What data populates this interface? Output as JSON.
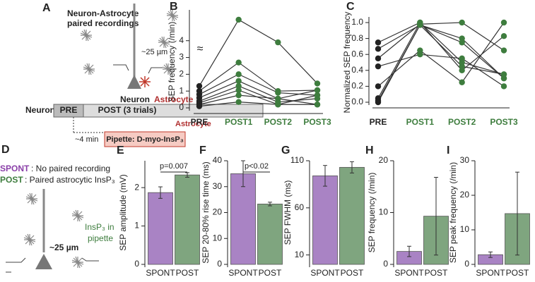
{
  "panel_a": {
    "label": "A",
    "title_line1": "Neuron-Astrocyte",
    "title_line2": "paired recordings",
    "distance": "~25 µm",
    "neuron": "Neuron",
    "astrocyte": "Astrocyte",
    "timeline_neuron": "Neuron",
    "pre": "PRE",
    "post": "POST (3 trials)",
    "timeline_astrocyte": "Astrocyte",
    "delay": "~4 min",
    "pipette": "Pipette: D-myo-InsP₃"
  },
  "panel_d": {
    "label": "D",
    "spont_key": "SPONT",
    "spont_text": ": No paired recording",
    "post_key": "POST",
    "post_text": ": Paired astrocytic InsP₃",
    "distance": "~25 µm",
    "pipette_line1": "InsP₃ in",
    "pipette_line2": "pipette"
  },
  "chart_data": [
    {
      "type": "line",
      "panel": "B",
      "ylabel": "SEP frequency (/min)",
      "axis_break": "≈",
      "categories": [
        "PRE",
        "POST1",
        "POST2",
        "POST3"
      ],
      "point_colors": [
        "#222222",
        "#3e7d3e",
        "#3e7d3e",
        "#3e7d3e"
      ],
      "line_color": "#333333",
      "series": [
        {
          "values": [
            1.3,
            5.25,
            3.9,
            1.45
          ]
        },
        {
          "values": [
            1.0,
            2.7,
            1.0,
            1.05
          ]
        },
        {
          "values": [
            0.8,
            2.0,
            0.9,
            0.75
          ]
        },
        {
          "values": [
            0.6,
            1.6,
            0.55,
            1.05
          ]
        },
        {
          "values": [
            0.4,
            1.3,
            0.35,
            0.55
          ]
        },
        {
          "values": [
            0.3,
            1.05,
            0.2,
            0.75
          ]
        },
        {
          "values": [
            0.2,
            0.75,
            0.55,
            0.2
          ]
        },
        {
          "values": [
            0.1,
            0.35,
            0.2,
            0.2
          ]
        }
      ],
      "ylim": [
        0,
        5.5
      ],
      "yticks": [
        0,
        1,
        2,
        3,
        4
      ]
    },
    {
      "type": "line",
      "panel": "C",
      "ylabel": "Normalized SEP frequency",
      "categories": [
        "PRE",
        "POST1",
        "POST2",
        "POST3"
      ],
      "point_colors": [
        "#222222",
        "#3e7d3e",
        "#3e7d3e",
        "#3e7d3e"
      ],
      "line_color": "#333333",
      "series": [
        {
          "values": [
            0.75,
            1.0,
            0.5,
            0.35
          ]
        },
        {
          "values": [
            0.67,
            0.97,
            0.75,
            0.3
          ]
        },
        {
          "values": [
            0.55,
            0.98,
            1.0,
            0.65
          ]
        },
        {
          "values": [
            0.45,
            0.6,
            0.55,
            0.2
          ]
        },
        {
          "values": [
            0.2,
            0.65,
            0.25,
            1.0
          ]
        },
        {
          "values": [
            0.05,
            1.0,
            0.4,
            0.83
          ]
        },
        {
          "values": [
            0.02,
            0.97,
            0.45,
            0.35
          ]
        },
        {
          "values": [
            0.0,
            0.97,
            0.8,
            0.3
          ]
        }
      ],
      "ylim": [
        0,
        1
      ],
      "yticks": [
        {
          "value": 0,
          "label": "0.0"
        },
        {
          "value": 0.2,
          "label": "0.2"
        },
        {
          "value": 0.4,
          "label": "0.4"
        },
        {
          "value": 0.6,
          "label": "0.6"
        },
        {
          "value": 0.8,
          "label": "0.8"
        },
        {
          "value": 1,
          "label": "1.0"
        }
      ]
    },
    {
      "type": "bar",
      "panel": "E",
      "ylabel": "SEP amplitude (mV)",
      "categories": [
        "SPONT",
        "POST"
      ],
      "values": [
        1.87,
        2.33
      ],
      "errors": [
        0.15,
        0.06
      ],
      "colors": [
        "#a983c4",
        "#7fa57f"
      ],
      "annotation": "p=0.007",
      "ylim": [
        0,
        2.7
      ],
      "yticks": [
        0,
        1,
        2
      ]
    },
    {
      "type": "bar",
      "panel": "F",
      "ylabel": "SEP 20-80% rise time (ms)",
      "categories": [
        "SPONT",
        "POST"
      ],
      "values": [
        35,
        23.3
      ],
      "errors": [
        5,
        0.7
      ],
      "colors": [
        "#a983c4",
        "#7fa57f"
      ],
      "annotation": "p<0.02",
      "ylim": [
        0,
        40
      ],
      "yticks": [
        0,
        10,
        20,
        30,
        40
      ]
    },
    {
      "type": "bar",
      "panel": "G",
      "ylabel": "SEP FWHM (ms)",
      "categories": [
        "SPONT",
        "POST"
      ],
      "values": [
        94,
        103
      ],
      "errors": [
        11,
        6
      ],
      "colors": [
        "#a983c4",
        "#7fa57f"
      ],
      "ylim": [
        0,
        110
      ],
      "yticks": [
        10,
        60,
        110
      ]
    },
    {
      "type": "bar",
      "panel": "H",
      "ylabel": "SEP frequency (/min)",
      "categories": [
        "SPONT",
        "POST"
      ],
      "values": [
        2.5,
        9.3
      ],
      "errors": [
        1,
        7.5
      ],
      "colors": [
        "#a983c4",
        "#7fa57f"
      ],
      "ylim": [
        0,
        20
      ],
      "yticks": [
        0,
        10,
        20
      ]
    },
    {
      "type": "bar",
      "panel": "I",
      "ylabel": "SEP peak frequency (/min)",
      "categories": [
        "SPONT",
        "POST"
      ],
      "values": [
        2.8,
        14.7
      ],
      "errors": [
        0.8,
        12
      ],
      "colors": [
        "#a983c4",
        "#7fa57f"
      ],
      "ylim": [
        0,
        30
      ],
      "yticks": [
        0,
        10,
        20,
        30
      ]
    }
  ]
}
